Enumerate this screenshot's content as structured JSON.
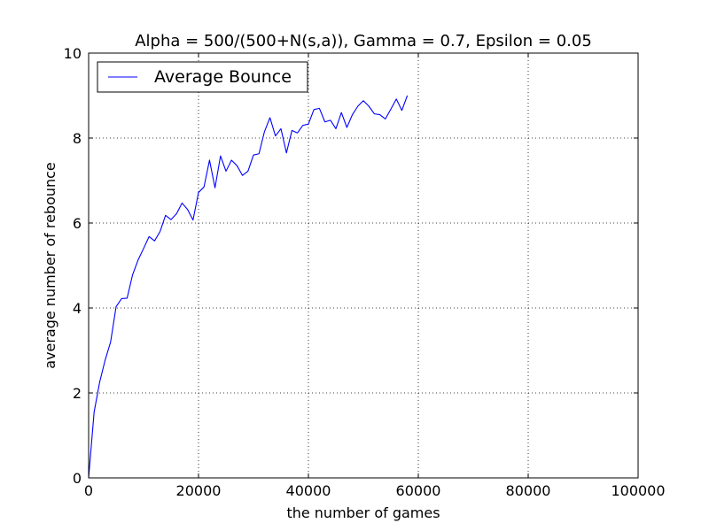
{
  "chart_data": {
    "type": "line",
    "title": "Alpha = 500/(500+N(s,a)), Gamma = 0.7, Epsilon = 0.05",
    "xlabel": "the number of games",
    "ylabel": "average number of rebounce",
    "xlim": [
      0,
      100000
    ],
    "ylim": [
      0,
      10
    ],
    "xticks": [
      0,
      20000,
      40000,
      60000,
      80000,
      100000
    ],
    "xtick_labels": [
      "0",
      "20000",
      "40000",
      "60000",
      "80000",
      "100000"
    ],
    "yticks": [
      0,
      2,
      4,
      6,
      8,
      10
    ],
    "ytick_labels": [
      "0",
      "2",
      "4",
      "6",
      "8",
      "10"
    ],
    "grid": true,
    "legend_position": "top-left",
    "series": [
      {
        "name": "Average Bounce",
        "color": "#0000ff",
        "x": [
          0,
          1000,
          2000,
          3000,
          4000,
          5000,
          6000,
          7000,
          8000,
          9000,
          10000,
          11000,
          12000,
          13000,
          14000,
          15000,
          16000,
          17000,
          18000,
          19000,
          20000,
          21000,
          22000,
          23000,
          24000,
          25000,
          26000,
          27000,
          28000,
          29000,
          30000,
          31000,
          32000,
          33000,
          34000,
          35000,
          36000,
          37000,
          38000,
          39000,
          40000,
          41000,
          42000,
          43000,
          44000,
          45000,
          46000,
          47000,
          48000,
          49000,
          50000,
          51000,
          52000,
          53000,
          54000,
          55000,
          56000,
          57000,
          58000
        ],
        "y": [
          0.0,
          1.55,
          2.25,
          2.77,
          3.2,
          4.03,
          4.22,
          4.23,
          4.78,
          5.13,
          5.4,
          5.68,
          5.58,
          5.8,
          6.18,
          6.08,
          6.22,
          6.47,
          6.32,
          6.07,
          6.72,
          6.85,
          7.48,
          6.83,
          7.58,
          7.22,
          7.48,
          7.35,
          7.12,
          7.22,
          7.6,
          7.63,
          8.15,
          8.48,
          8.05,
          8.22,
          7.65,
          8.18,
          8.12,
          8.3,
          8.33,
          8.67,
          8.7,
          8.38,
          8.42,
          8.22,
          8.6,
          8.25,
          8.55,
          8.75,
          8.88,
          8.75,
          8.57,
          8.55,
          8.45,
          8.68,
          8.92,
          8.65,
          9.0
        ]
      }
    ]
  }
}
